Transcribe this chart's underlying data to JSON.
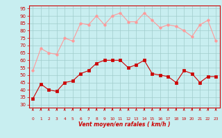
{
  "hours": [
    0,
    1,
    2,
    3,
    4,
    5,
    6,
    7,
    8,
    9,
    10,
    11,
    12,
    13,
    14,
    15,
    16,
    17,
    18,
    19,
    20,
    21,
    22,
    23
  ],
  "vent_moyen": [
    34,
    44,
    40,
    39,
    45,
    46,
    51,
    53,
    58,
    60,
    60,
    60,
    55,
    57,
    60,
    51,
    50,
    49,
    45,
    53,
    51,
    45,
    49,
    49
  ],
  "rafales": [
    53,
    68,
    65,
    64,
    75,
    73,
    85,
    84,
    90,
    84,
    90,
    92,
    86,
    86,
    92,
    87,
    82,
    84,
    83,
    80,
    76,
    84,
    87,
    73
  ],
  "ylabel_ticks": [
    30,
    35,
    40,
    45,
    50,
    55,
    60,
    65,
    70,
    75,
    80,
    85,
    90,
    95
  ],
  "ylim": [
    28,
    97
  ],
  "xlim": [
    -0.5,
    23.5
  ],
  "xlabel": "Vent moyen/en rafales ( km/h )",
  "bg_color": "#c8eef0",
  "grid_color": "#a0cccc",
  "line_color_moyen": "#cc0000",
  "line_color_rafales": "#ff9999",
  "marker_moyen": "s",
  "marker_rafales": "o",
  "marker_size_moyen": 2.5,
  "marker_size_rafales": 2.5,
  "linewidth": 0.8,
  "tick_label_color": "#cc0000",
  "xlabel_color": "#cc0000",
  "ylabel_color": "#cc0000",
  "arrow_color": "#cc0000",
  "spine_color": "#cc0000"
}
